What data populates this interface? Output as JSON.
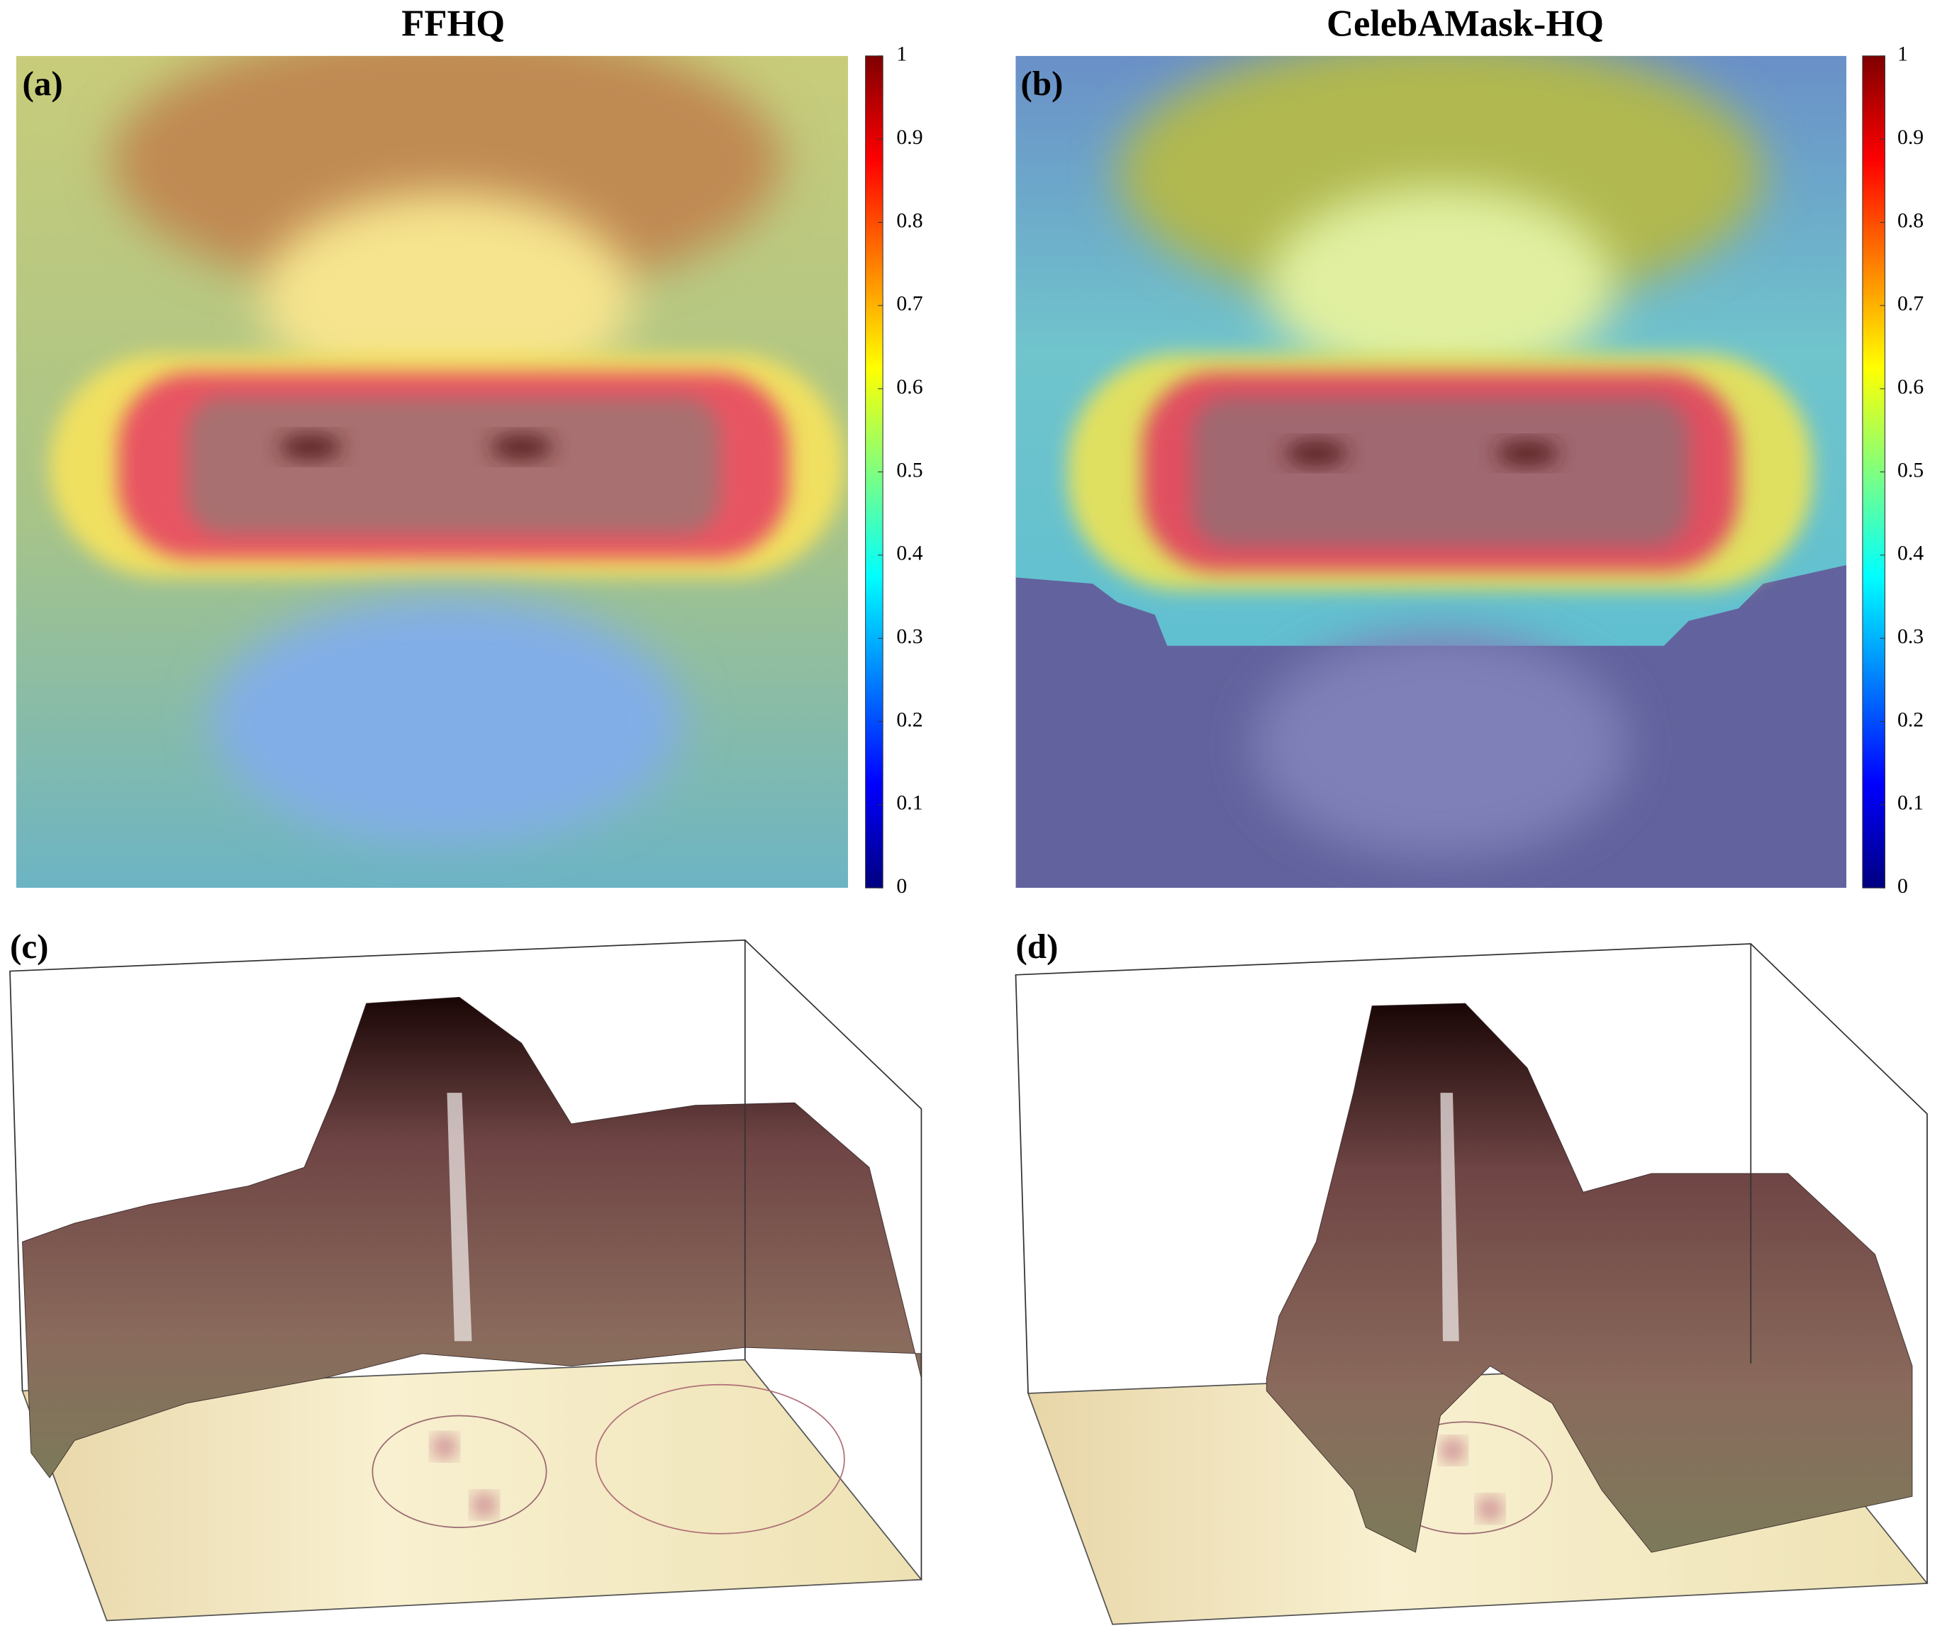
{
  "chart_data": [
    {
      "type": "heatmap",
      "title": "FFHQ",
      "panel_label": "(a)",
      "ylim": [
        0,
        1
      ],
      "yticks": [
        0,
        0.1,
        0.2,
        0.3,
        0.4,
        0.5,
        0.6,
        0.7,
        0.8,
        0.9,
        1
      ],
      "colormap": [
        "#00007f",
        "#0000ff",
        "#007fff",
        "#00ffff",
        "#7fff7f",
        "#ffff00",
        "#ff7f00",
        "#ff0000",
        "#7f0000"
      ]
    },
    {
      "type": "heatmap",
      "title": "CelebAMask-HQ",
      "panel_label": "(b)",
      "ylim": [
        0,
        1
      ],
      "yticks": [
        0,
        0.1,
        0.2,
        0.3,
        0.4,
        0.5,
        0.6,
        0.7,
        0.8,
        0.9,
        1
      ],
      "colormap": [
        "#00007f",
        "#0000ff",
        "#007fff",
        "#00ffff",
        "#7fff7f",
        "#ffff00",
        "#ff7f00",
        "#ff0000",
        "#7f0000"
      ]
    },
    {
      "type": "surface",
      "panel_label": "(c)"
    },
    {
      "type": "surface",
      "panel_label": "(d)"
    }
  ]
}
